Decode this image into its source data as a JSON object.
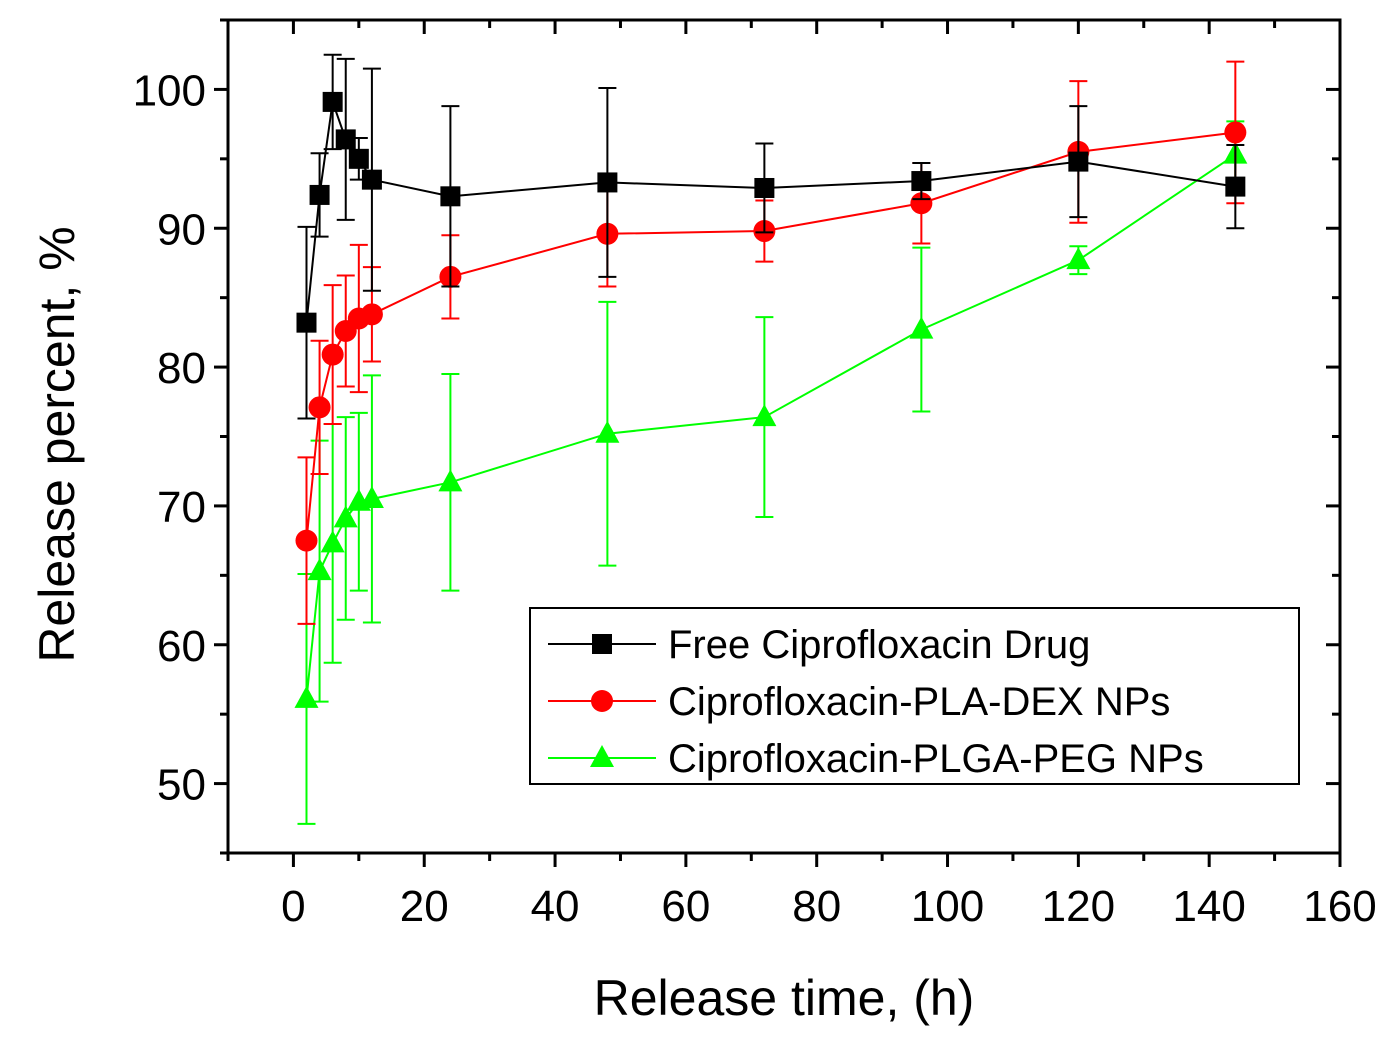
{
  "chart_data": {
    "type": "scatter",
    "title": "",
    "xlabel": "Release time, (h)",
    "ylabel": "Release percent, %",
    "xlim": [
      -10,
      160
    ],
    "ylim": [
      45,
      105
    ],
    "xticks": [
      0,
      20,
      40,
      60,
      80,
      100,
      120,
      140,
      160
    ],
    "yticks": [
      50,
      60,
      70,
      80,
      90,
      100
    ],
    "x_tick_labels": [
      "0",
      "20",
      "40",
      "60",
      "80",
      "100",
      "120",
      "140",
      "160"
    ],
    "y_tick_labels": [
      "50",
      "60",
      "70",
      "80",
      "90",
      "100"
    ],
    "grid": false,
    "legend_position": "bottom-right",
    "x": [
      2,
      4,
      6,
      8,
      10,
      12,
      24,
      48,
      72,
      96,
      120,
      144
    ],
    "series": [
      {
        "name": "Free Ciprofloxacin Drug",
        "color": "#000000",
        "marker": "square",
        "values": [
          83.2,
          92.4,
          99.1,
          96.4,
          95.0,
          93.5,
          92.3,
          93.3,
          92.9,
          93.4,
          94.8,
          93.0
        ],
        "errors": [
          6.9,
          3.0,
          3.4,
          5.8,
          1.5,
          8.0,
          6.5,
          6.8,
          3.2,
          1.3,
          4.0,
          3.0
        ]
      },
      {
        "name": "Ciprofloxacin-PLA-DEX NPs",
        "color": "#ff0000",
        "marker": "circle",
        "values": [
          67.5,
          77.1,
          80.9,
          82.6,
          83.5,
          83.8,
          86.5,
          89.6,
          89.8,
          91.8,
          95.5,
          96.9
        ],
        "errors": [
          6.0,
          4.8,
          5.0,
          4.0,
          5.3,
          3.4,
          3.0,
          3.8,
          2.2,
          2.9,
          5.1,
          5.1
        ]
      },
      {
        "name": "Ciprofloxacin-PLGA-PEG NPs",
        "color": "#00ff00",
        "marker": "triangle",
        "values": [
          56.1,
          65.3,
          67.3,
          69.1,
          70.3,
          70.5,
          71.7,
          75.2,
          76.4,
          82.7,
          87.7,
          95.3
        ],
        "errors": [
          9.0,
          9.4,
          8.6,
          7.3,
          6.4,
          8.9,
          7.8,
          9.5,
          7.2,
          5.9,
          1.0,
          2.4
        ]
      }
    ]
  }
}
